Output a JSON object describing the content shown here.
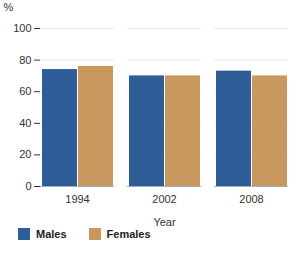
{
  "chart_data": {
    "type": "bar",
    "x_label": "Year",
    "y_label": "%",
    "categories": [
      "1994",
      "2002",
      "2008"
    ],
    "series": [
      {
        "name": "Males",
        "color": "#2e5d97",
        "values": [
          74,
          70,
          73
        ]
      },
      {
        "name": "Females",
        "color": "#c8985e",
        "values": [
          76,
          70,
          70
        ]
      }
    ],
    "ylim": [
      0,
      100
    ],
    "yticks": [
      0,
      20,
      40,
      60,
      80,
      100
    ],
    "grid": true,
    "legend": "bottom"
  }
}
